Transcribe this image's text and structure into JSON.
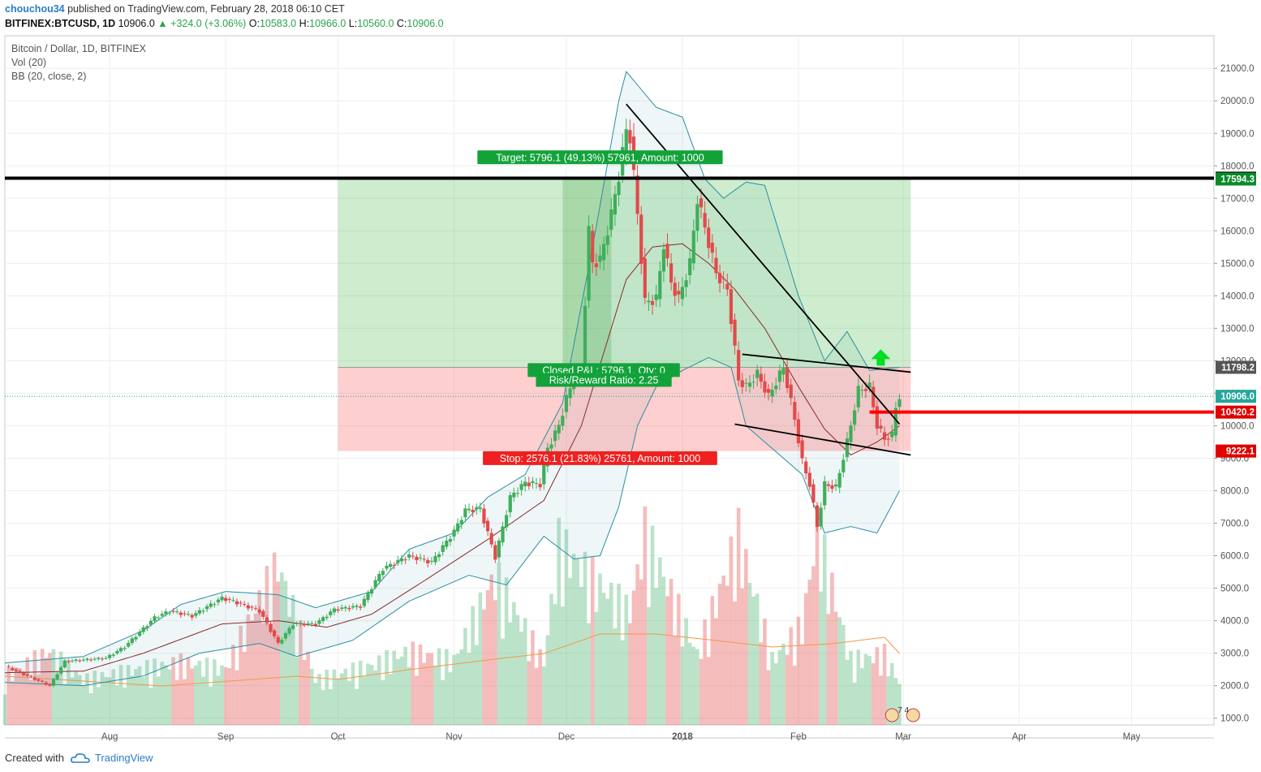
{
  "header": {
    "author": "chouchou34",
    "published": "published on TradingView.com, February 28, 2018 06:10 CET",
    "symbol": "BITFINEX:BTCUSD, 1D",
    "last": "10906.0",
    "change": "+324.0 (+3.06%)",
    "o_label": "O:",
    "o": "10583.0",
    "h_label": "H:",
    "h": "10966.0",
    "l_label": "L:",
    "l": "10560.0",
    "c_label": "C:",
    "c": "10906.0"
  },
  "legend": {
    "title": "Bitcoin / Dollar, 1D, BITFINEX",
    "vol": "Vol (20)",
    "bb": "BB (20, close, 2)"
  },
  "footer": {
    "created_with": "Created with",
    "brand": "TradingView"
  },
  "colors": {
    "up": "#26a69a",
    "up_fill": "#3fae5a",
    "down": "#e34a4a",
    "bb_band": "#2a8fa0",
    "bb_basis": "#8a2a2a",
    "vol_ma": "#f09a4a",
    "target_zone": "rgba(60,180,60,0.25)",
    "stop_zone": "rgba(250,110,110,0.33)",
    "level_black": "#000000",
    "level_red": "#ff0000"
  },
  "chart_data": {
    "type": "candlestick",
    "title": "Bitcoin / Dollar, 1D, BITFINEX",
    "ylim": [
      1000,
      21000
    ],
    "y_ticks": [
      "21000.0",
      "20000.0",
      "19000.0",
      "18000.0",
      "17000.0",
      "16000.0",
      "15000.0",
      "14000.0",
      "13000.0",
      "12000.0",
      "11000.0",
      "10000.0",
      "9000.0",
      "8000.0",
      "7000.0",
      "6000.0",
      "5000.0",
      "4000.0",
      "3000.0",
      "2000.0",
      "1000.0"
    ],
    "y_tick_values": [
      21000,
      20000,
      19000,
      18000,
      17000,
      16000,
      15000,
      14000,
      13000,
      12000,
      11000,
      10000,
      9000,
      8000,
      7000,
      6000,
      5000,
      4000,
      3000,
      2000,
      1000
    ],
    "x_ticks": [
      "Aug",
      "Sep",
      "Oct",
      "Nov",
      "Dec",
      "2018",
      "Feb",
      "Mar",
      "Apr",
      "May"
    ],
    "x_tick_dates": [
      "2017-08-01",
      "2017-09-01",
      "2017-10-01",
      "2017-11-01",
      "2017-12-01",
      "2018-01-01",
      "2018-02-01",
      "2018-03-01",
      "2018-04-01",
      "2018-05-01"
    ],
    "x_range": [
      "2017-07-04",
      "2018-05-23"
    ],
    "price_labels": [
      {
        "text": "17620.0",
        "value": 17620,
        "color": "#000000"
      },
      {
        "text": "17594.3",
        "value": 17594.3,
        "color": "#0a8a2a"
      },
      {
        "text": "11798.2",
        "value": 11798.2,
        "color": "#555555"
      },
      {
        "text": "10906.0",
        "value": 10906,
        "color": "#26a69a"
      },
      {
        "text": "10420.2",
        "value": 10420.2,
        "color": "#e00000"
      },
      {
        "text": "9222.1",
        "value": 9222.1,
        "color": "#e00000"
      }
    ],
    "annotations": {
      "target": "Target: 5796.1 (49.13%) 57961, Amount: 1000",
      "stop": "Stop: 2576.1 (21.83%) 25761, Amount: 1000",
      "pnl": "Closed P&L: 5796.1, Qty: 0",
      "rr": "Risk/Reward Ratio: 2.25",
      "dates": "7 4"
    },
    "position": {
      "entry": 11798.2,
      "target": 17594.3,
      "stop": 9222.1,
      "start": "2017-10-01",
      "end": "2018-03-03"
    },
    "horizontal_levels": [
      17620,
      10420.2
    ],
    "last_price": 10906,
    "trendlines": [
      {
        "from": [
          "2017-12-17",
          19900
        ],
        "to": [
          "2018-02-28",
          10050
        ],
        "color": "#000000"
      },
      {
        "from": [
          "2018-01-17",
          12200
        ],
        "to": [
          "2018-03-03",
          11650
        ],
        "color": "#000000"
      },
      {
        "from": [
          "2018-01-15",
          10050
        ],
        "to": [
          "2018-03-03",
          9100
        ],
        "color": "#000000"
      }
    ],
    "close_keypoints": [
      [
        "2017-07-04",
        2600
      ],
      [
        "2017-07-16",
        2000
      ],
      [
        "2017-07-20",
        2750
      ],
      [
        "2017-07-31",
        2850
      ],
      [
        "2017-08-05",
        3200
      ],
      [
        "2017-08-13",
        4100
      ],
      [
        "2017-08-17",
        4300
      ],
      [
        "2017-08-23",
        4150
      ],
      [
        "2017-08-31",
        4700
      ],
      [
        "2017-09-03",
        4600
      ],
      [
        "2017-09-10",
        4300
      ],
      [
        "2017-09-15",
        3300
      ],
      [
        "2017-09-19",
        3900
      ],
      [
        "2017-09-25",
        3900
      ],
      [
        "2017-09-30",
        4350
      ],
      [
        "2017-10-07",
        4450
      ],
      [
        "2017-10-13",
        5600
      ],
      [
        "2017-10-20",
        6000
      ],
      [
        "2017-10-26",
        5800
      ],
      [
        "2017-11-01",
        6750
      ],
      [
        "2017-11-04",
        7400
      ],
      [
        "2017-11-08",
        7450
      ],
      [
        "2017-11-12",
        5950
      ],
      [
        "2017-11-16",
        7800
      ],
      [
        "2017-11-20",
        8250
      ],
      [
        "2017-11-24",
        8200
      ],
      [
        "2017-11-26",
        9300
      ],
      [
        "2017-11-29",
        10000
      ],
      [
        "2017-12-01",
        10850
      ],
      [
        "2017-12-03",
        11400
      ],
      [
        "2017-12-05",
        11700
      ],
      [
        "2017-12-07",
        16000
      ],
      [
        "2017-12-08",
        15000
      ],
      [
        "2017-12-10",
        15100
      ],
      [
        "2017-12-13",
        16500
      ],
      [
        "2017-12-15",
        17700
      ],
      [
        "2017-12-17",
        19100
      ],
      [
        "2017-12-18",
        18900
      ],
      [
        "2017-12-20",
        16500
      ],
      [
        "2017-12-22",
        13800
      ],
      [
        "2017-12-25",
        13900
      ],
      [
        "2017-12-27",
        15600
      ],
      [
        "2017-12-29",
        14400
      ],
      [
        "2017-12-31",
        13900
      ],
      [
        "2018-01-03",
        15000
      ],
      [
        "2018-01-05",
        17000
      ],
      [
        "2018-01-07",
        16100
      ],
      [
        "2018-01-10",
        14700
      ],
      [
        "2018-01-13",
        14200
      ],
      [
        "2018-01-16",
        11400
      ],
      [
        "2018-01-18",
        11200
      ],
      [
        "2018-01-21",
        11600
      ],
      [
        "2018-01-24",
        10900
      ],
      [
        "2018-01-28",
        11800
      ],
      [
        "2018-01-31",
        10200
      ],
      [
        "2018-02-02",
        8900
      ],
      [
        "2018-02-04",
        8200
      ],
      [
        "2018-02-06",
        6900
      ],
      [
        "2018-02-08",
        8200
      ],
      [
        "2018-02-11",
        8100
      ],
      [
        "2018-02-14",
        9500
      ],
      [
        "2018-02-17",
        11100
      ],
      [
        "2018-02-20",
        11200
      ],
      [
        "2018-02-22",
        10000
      ],
      [
        "2018-02-24",
        9600
      ],
      [
        "2018-02-26",
        9700
      ],
      [
        "2018-02-27",
        10580
      ],
      [
        "2018-02-28",
        10906
      ]
    ],
    "bb_upper_keypoints": [
      [
        "2017-07-04",
        2700
      ],
      [
        "2017-07-25",
        2900
      ],
      [
        "2017-08-10",
        3700
      ],
      [
        "2017-08-20",
        4500
      ],
      [
        "2017-09-01",
        4900
      ],
      [
        "2017-09-15",
        4800
      ],
      [
        "2017-09-25",
        4400
      ],
      [
        "2017-10-10",
        4900
      ],
      [
        "2017-10-20",
        6200
      ],
      [
        "2017-11-01",
        6700
      ],
      [
        "2017-11-10",
        7800
      ],
      [
        "2017-11-20",
        8500
      ],
      [
        "2017-11-30",
        10700
      ],
      [
        "2017-12-08",
        15500
      ],
      [
        "2017-12-15",
        20000
      ],
      [
        "2017-12-17",
        20900
      ],
      [
        "2017-12-25",
        19800
      ],
      [
        "2018-01-01",
        19500
      ],
      [
        "2018-01-07",
        17600
      ],
      [
        "2018-01-12",
        17000
      ],
      [
        "2018-01-18",
        17500
      ],
      [
        "2018-01-23",
        17400
      ],
      [
        "2018-02-01",
        14000
      ],
      [
        "2018-02-08",
        12000
      ],
      [
        "2018-02-14",
        12900
      ],
      [
        "2018-02-20",
        11700
      ],
      [
        "2018-02-28",
        11800
      ]
    ],
    "bb_basis_keypoints": [
      [
        "2017-07-04",
        2400
      ],
      [
        "2017-07-25",
        2450
      ],
      [
        "2017-08-10",
        3000
      ],
      [
        "2017-08-31",
        3900
      ],
      [
        "2017-09-15",
        4000
      ],
      [
        "2017-09-28",
        3800
      ],
      [
        "2017-10-10",
        4200
      ],
      [
        "2017-10-25",
        5300
      ],
      [
        "2017-11-10",
        6500
      ],
      [
        "2017-11-25",
        7700
      ],
      [
        "2017-12-05",
        10000
      ],
      [
        "2017-12-17",
        14500
      ],
      [
        "2017-12-24",
        15500
      ],
      [
        "2018-01-01",
        15600
      ],
      [
        "2018-01-08",
        15000
      ],
      [
        "2018-01-15",
        14200
      ],
      [
        "2018-01-23",
        13000
      ],
      [
        "2018-02-01",
        11200
      ],
      [
        "2018-02-08",
        9900
      ],
      [
        "2018-02-15",
        9100
      ],
      [
        "2018-02-22",
        9500
      ],
      [
        "2018-02-28",
        10000
      ]
    ],
    "bb_lower_keypoints": [
      [
        "2017-07-04",
        2100
      ],
      [
        "2017-07-25",
        2000
      ],
      [
        "2017-08-10",
        2300
      ],
      [
        "2017-08-25",
        3000
      ],
      [
        "2017-09-10",
        3300
      ],
      [
        "2017-09-20",
        2900
      ],
      [
        "2017-10-05",
        3400
      ],
      [
        "2017-10-20",
        4600
      ],
      [
        "2017-11-05",
        5400
      ],
      [
        "2017-11-15",
        5100
      ],
      [
        "2017-11-25",
        6600
      ],
      [
        "2017-12-03",
        5900
      ],
      [
        "2017-12-10",
        6000
      ],
      [
        "2017-12-15",
        7500
      ],
      [
        "2017-12-20",
        10000
      ],
      [
        "2017-12-25",
        11200
      ],
      [
        "2018-01-01",
        11700
      ],
      [
        "2018-01-08",
        12100
      ],
      [
        "2018-01-14",
        11800
      ],
      [
        "2018-01-18",
        10000
      ],
      [
        "2018-01-25",
        9300
      ],
      [
        "2018-02-02",
        8500
      ],
      [
        "2018-02-08",
        6700
      ],
      [
        "2018-02-15",
        6900
      ],
      [
        "2018-02-22",
        6700
      ],
      [
        "2018-02-28",
        8000
      ]
    ],
    "volume_keypoints": [
      [
        "2017-07-04",
        1700
      ],
      [
        "2017-07-16",
        2600
      ],
      [
        "2017-07-25",
        1600
      ],
      [
        "2017-08-10",
        2000
      ],
      [
        "2017-08-20",
        2200
      ],
      [
        "2017-09-01",
        2000
      ],
      [
        "2017-09-15",
        5700
      ],
      [
        "2017-09-25",
        1600
      ],
      [
        "2017-10-10",
        2100
      ],
      [
        "2017-10-20",
        2600
      ],
      [
        "2017-11-01",
        2300
      ],
      [
        "2017-11-12",
        5300
      ],
      [
        "2017-11-25",
        2200
      ],
      [
        "2017-11-29",
        6400
      ],
      [
        "2017-12-07",
        5300
      ],
      [
        "2017-12-18",
        4000
      ],
      [
        "2017-12-22",
        6800
      ],
      [
        "2018-01-05",
        2500
      ],
      [
        "2018-01-16",
        6700
      ],
      [
        "2018-01-25",
        2300
      ],
      [
        "2018-02-02",
        3500
      ],
      [
        "2018-02-06",
        6900
      ],
      [
        "2018-02-15",
        2300
      ],
      [
        "2018-02-24",
        2500
      ],
      [
        "2018-02-28",
        1500
      ]
    ],
    "volume_ma_keypoints": [
      [
        "2017-07-04",
        1500
      ],
      [
        "2017-08-15",
        1200
      ],
      [
        "2017-09-20",
        1500
      ],
      [
        "2017-10-01",
        1400
      ],
      [
        "2017-10-20",
        1700
      ],
      [
        "2017-11-10",
        2000
      ],
      [
        "2017-11-25",
        2200
      ],
      [
        "2017-12-10",
        2800
      ],
      [
        "2017-12-25",
        2800
      ],
      [
        "2018-01-10",
        2600
      ],
      [
        "2018-01-25",
        2400
      ],
      [
        "2018-02-10",
        2500
      ],
      [
        "2018-02-24",
        2700
      ],
      [
        "2018-02-28",
        2200
      ]
    ]
  }
}
